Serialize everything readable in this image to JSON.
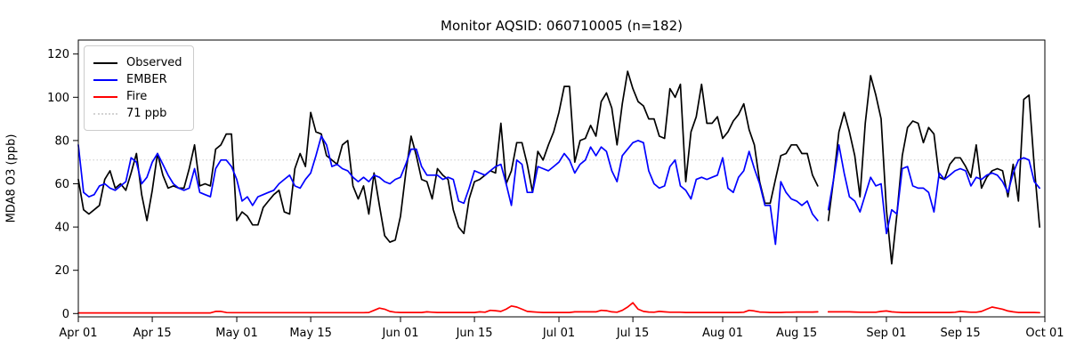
{
  "chart": {
    "title": "Monitor AQSID: 060710005 (n=182)",
    "ylabel": "MDA8 O3 (ppb)"
  },
  "chart_data": {
    "type": "line",
    "title": "Monitor AQSID: 060710005 (n=182)",
    "xlabel": "",
    "ylabel": "MDA8 O3 (ppb)",
    "x_unit": "day index from Apr 01",
    "x_axis_end_day": 183,
    "x_ticks": [
      {
        "day": 0,
        "label": "Apr 01"
      },
      {
        "day": 14,
        "label": "Apr 15"
      },
      {
        "day": 30,
        "label": "May 01"
      },
      {
        "day": 44,
        "label": "May 15"
      },
      {
        "day": 61,
        "label": "Jun 01"
      },
      {
        "day": 75,
        "label": "Jun 15"
      },
      {
        "day": 91,
        "label": "Jul 01"
      },
      {
        "day": 105,
        "label": "Jul 15"
      },
      {
        "day": 122,
        "label": "Aug 01"
      },
      {
        "day": 136,
        "label": "Aug 15"
      },
      {
        "day": 153,
        "label": "Sep 01"
      },
      {
        "day": 167,
        "label": "Sep 15"
      },
      {
        "day": 183,
        "label": "Oct 01"
      }
    ],
    "y_ticks": [
      0,
      20,
      40,
      60,
      80,
      100,
      120
    ],
    "ylim": [
      -1.5,
      126.5
    ],
    "grid": false,
    "legend_position": "upper left",
    "legend": [
      "Observed",
      "EMBER",
      "Fire",
      "71 ppb"
    ],
    "threshold": {
      "value": 71,
      "label": "71 ppb",
      "color": "#d3d3d3",
      "style": "dotted"
    },
    "series": [
      {
        "name": "Observed",
        "color": "#000000",
        "values": [
          62,
          48,
          46,
          48,
          50,
          62,
          66,
          58,
          60,
          57,
          65,
          74,
          55,
          43,
          57,
          74,
          64,
          58,
          59,
          58,
          58,
          67,
          78,
          59,
          60,
          59,
          76,
          78,
          83,
          83,
          43,
          47,
          45,
          41,
          41,
          49,
          52,
          55,
          57,
          47,
          46,
          67,
          74,
          68,
          93,
          84,
          83,
          73,
          71,
          69,
          78,
          80,
          59,
          53,
          59,
          46,
          65,
          50,
          36,
          33,
          34,
          45,
          65,
          82,
          73,
          62,
          61,
          53,
          67,
          64,
          62,
          48,
          40,
          37,
          53,
          61,
          62,
          64,
          66,
          65,
          88,
          60,
          66,
          79,
          79,
          69,
          56,
          75,
          71,
          78,
          84,
          93,
          105,
          105,
          70,
          80,
          81,
          87,
          82,
          98,
          102,
          95,
          78,
          97,
          112,
          104,
          98,
          96,
          90,
          90,
          82,
          81,
          104,
          100,
          106,
          61,
          84,
          91,
          106,
          88,
          88,
          91,
          81,
          84,
          89,
          92,
          97,
          85,
          78,
          61,
          51,
          51,
          62,
          73,
          74,
          78,
          78,
          74,
          74,
          64,
          59,
          null,
          43,
          62,
          84,
          93,
          84,
          73,
          54,
          88,
          110,
          101,
          90,
          48,
          23,
          46,
          73,
          86,
          89,
          88,
          79,
          86,
          83,
          63,
          62,
          69,
          72,
          72,
          68,
          63,
          78,
          58,
          63,
          66,
          67,
          66,
          54,
          69,
          52,
          99,
          101,
          68,
          40
        ]
      },
      {
        "name": "EMBER",
        "color": "#0000ff",
        "values": [
          78,
          56,
          54,
          55,
          59,
          60,
          58,
          57,
          59,
          61,
          72,
          70,
          60,
          63,
          70,
          74,
          69,
          64,
          60,
          58,
          57,
          58,
          67,
          56,
          55,
          54,
          67,
          71,
          71,
          68,
          62,
          52,
          54,
          50,
          54,
          55,
          56,
          57,
          60,
          62,
          64,
          59,
          58,
          62,
          65,
          73,
          82,
          78,
          68,
          69,
          67,
          66,
          63,
          61,
          63,
          61,
          64,
          63,
          61,
          60,
          62,
          63,
          69,
          76,
          76,
          68,
          64,
          64,
          64,
          62,
          63,
          62,
          52,
          51,
          58,
          66,
          65,
          64,
          66,
          68,
          69,
          60,
          50,
          71,
          69,
          56,
          56,
          68,
          67,
          66,
          68,
          70,
          74,
          71,
          65,
          69,
          71,
          77,
          73,
          77,
          75,
          66,
          61,
          73,
          76,
          79,
          80,
          79,
          66,
          60,
          58,
          59,
          68,
          71,
          59,
          57,
          53,
          62,
          63,
          62,
          63,
          64,
          72,
          58,
          56,
          63,
          66,
          75,
          67,
          60,
          50,
          50,
          32,
          61,
          56,
          53,
          52,
          50,
          52,
          46,
          43,
          null,
          48,
          62,
          78,
          65,
          54,
          52,
          47,
          55,
          63,
          59,
          60,
          37,
          48,
          46,
          67,
          68,
          59,
          58,
          58,
          56,
          47,
          65,
          62,
          64,
          66,
          67,
          66,
          59,
          63,
          62,
          64,
          65,
          64,
          61,
          56,
          65,
          71,
          72,
          71,
          61,
          58
        ]
      },
      {
        "name": "Fire",
        "color": "#ff0000",
        "values": [
          0.3,
          0.3,
          0.3,
          0.3,
          0.3,
          0.3,
          0.3,
          0.3,
          0.3,
          0.3,
          0.3,
          0.3,
          0.3,
          0.3,
          0.3,
          0.3,
          0.3,
          0.3,
          0.3,
          0.3,
          0.3,
          0.3,
          0.3,
          0.3,
          0.3,
          0.3,
          1,
          1,
          0.5,
          0.4,
          0.4,
          0.4,
          0.4,
          0.4,
          0.4,
          0.4,
          0.4,
          0.4,
          0.4,
          0.4,
          0.4,
          0.4,
          0.4,
          0.4,
          0.4,
          0.4,
          0.4,
          0.4,
          0.4,
          0.4,
          0.4,
          0.4,
          0.4,
          0.4,
          0.4,
          0.5,
          1.5,
          2.5,
          2,
          1,
          0.6,
          0.5,
          0.5,
          0.5,
          0.5,
          0.5,
          0.8,
          0.6,
          0.5,
          0.5,
          0.5,
          0.5,
          0.5,
          0.5,
          0.5,
          0.5,
          0.8,
          0.6,
          1.5,
          1.3,
          1,
          2,
          3.5,
          3,
          2,
          1,
          0.8,
          0.6,
          0.5,
          0.5,
          0.5,
          0.5,
          0.5,
          0.5,
          0.8,
          0.8,
          0.8,
          0.8,
          0.8,
          1.5,
          1.3,
          0.8,
          0.6,
          1.5,
          3,
          5,
          2,
          1,
          0.7,
          0.6,
          1,
          0.8,
          0.6,
          0.6,
          0.6,
          0.5,
          0.5,
          0.5,
          0.5,
          0.5,
          0.5,
          0.5,
          0.5,
          0.5,
          0.5,
          0.5,
          0.6,
          1.5,
          1.2,
          0.7,
          0.6,
          0.5,
          0.5,
          0.5,
          0.6,
          0.6,
          0.7,
          0.7,
          0.7,
          0.7,
          0.8,
          null,
          0.8,
          0.8,
          0.8,
          0.8,
          0.8,
          0.7,
          0.6,
          0.6,
          0.6,
          0.6,
          1,
          1.2,
          0.8,
          0.6,
          0.5,
          0.5,
          0.5,
          0.5,
          0.5,
          0.5,
          0.5,
          0.5,
          0.5,
          0.5,
          0.6,
          1,
          0.8,
          0.6,
          0.6,
          1,
          2,
          3,
          2.5,
          2,
          1.2,
          0.8,
          0.5,
          0.5,
          0.5,
          0.5,
          0.4
        ]
      }
    ]
  }
}
